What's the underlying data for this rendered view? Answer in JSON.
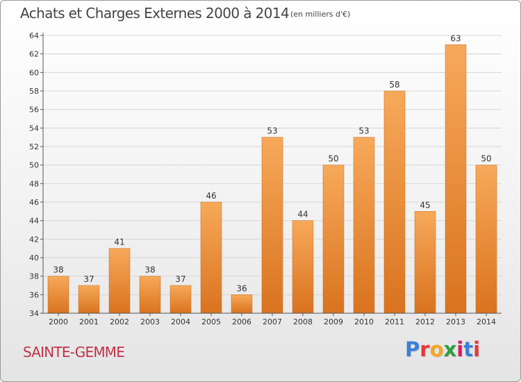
{
  "title": "Achats et Charges Externes 2000 à 2014",
  "subtitle": "(en milliers d'€)",
  "commune": "SAINTE-GEMME",
  "brand": {
    "text": "Proxiti",
    "letter_colors": [
      "#3a7fd5",
      "#e53935",
      "#f5a623",
      "#2e9e3e",
      "#d81b60",
      "#3a7fd5",
      "#e53935"
    ]
  },
  "colors": {
    "bar_light": "#f7a95a",
    "bar_dark": "#d9731f",
    "grid": "#d6d6d6",
    "axis": "#555555",
    "text": "#333333"
  },
  "chart_data": {
    "type": "bar",
    "categories": [
      "2000",
      "2001",
      "2002",
      "2003",
      "2004",
      "2005",
      "2006",
      "2007",
      "2008",
      "2009",
      "2010",
      "2011",
      "2012",
      "2013",
      "2014"
    ],
    "values": [
      38,
      37,
      41,
      38,
      37,
      46,
      36,
      53,
      44,
      50,
      53,
      58,
      45,
      63,
      50
    ],
    "ylim": [
      34,
      64
    ],
    "yticks": [
      34,
      36,
      38,
      40,
      42,
      44,
      46,
      48,
      50,
      52,
      54,
      56,
      58,
      60,
      62,
      64
    ],
    "grid": true,
    "xlabel": "",
    "ylabel": ""
  }
}
